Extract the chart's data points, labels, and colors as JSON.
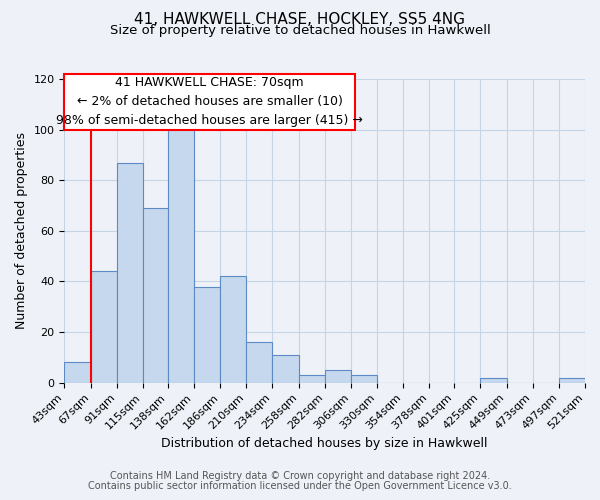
{
  "title": "41, HAWKWELL CHASE, HOCKLEY, SS5 4NG",
  "subtitle": "Size of property relative to detached houses in Hawkwell",
  "xlabel": "Distribution of detached houses by size in Hawkwell",
  "ylabel": "Number of detached properties",
  "bin_edges": [
    43,
    67,
    91,
    115,
    138,
    162,
    186,
    210,
    234,
    258,
    282,
    306,
    330,
    354,
    378,
    401,
    425,
    449,
    473,
    497,
    521
  ],
  "bin_labels": [
    "43sqm",
    "67sqm",
    "91sqm",
    "115sqm",
    "138sqm",
    "162sqm",
    "186sqm",
    "210sqm",
    "234sqm",
    "258sqm",
    "282sqm",
    "306sqm",
    "330sqm",
    "354sqm",
    "378sqm",
    "401sqm",
    "425sqm",
    "449sqm",
    "473sqm",
    "497sqm",
    "521sqm"
  ],
  "counts": [
    8,
    44,
    87,
    69,
    101,
    38,
    42,
    16,
    11,
    3,
    5,
    3,
    0,
    0,
    0,
    0,
    2,
    0,
    0,
    2
  ],
  "bar_facecolor": "#c5d8ed",
  "bar_edgecolor": "#5b8ac5",
  "property_line_x": 67,
  "property_line_color": "red",
  "ylim": [
    0,
    120
  ],
  "yticks": [
    0,
    20,
    40,
    60,
    80,
    100,
    120
  ],
  "annotation_line1": "41 HAWKWELL CHASE: 70sqm",
  "annotation_line2": "← 2% of detached houses are smaller (10)",
  "annotation_line3": "98% of semi-detached houses are larger (415) →",
  "footer_line1": "Contains HM Land Registry data © Crown copyright and database right 2024.",
  "footer_line2": "Contains public sector information licensed under the Open Government Licence v3.0.",
  "background_color": "#eef2f8",
  "grid_color": "#c5d5e8",
  "title_fontsize": 11,
  "subtitle_fontsize": 9.5,
  "axis_label_fontsize": 9,
  "tick_fontsize": 8,
  "annotation_fontsize": 9,
  "footer_fontsize": 7
}
